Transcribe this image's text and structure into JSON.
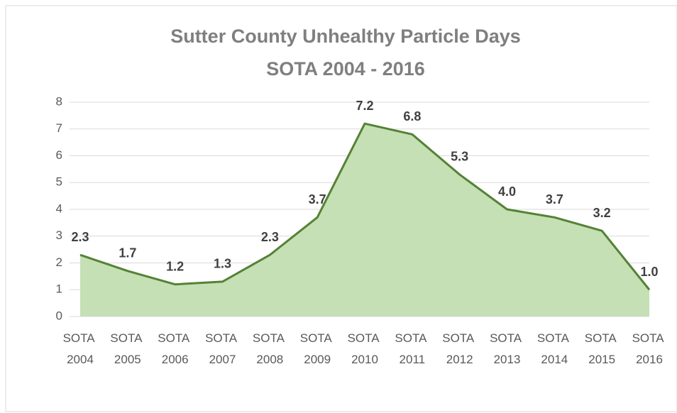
{
  "chart_data": {
    "type": "area",
    "title": "Sutter County Unhealthy Particle Days",
    "subtitle": "SOTA 2004 - 2016",
    "categories": [
      "SOTA 2004",
      "SOTA 2005",
      "SOTA 2006",
      "SOTA 2007",
      "SOTA 2008",
      "SOTA 2009",
      "SOTA 2010",
      "SOTA 2011",
      "SOTA 2012",
      "SOTA 2013",
      "SOTA 2014",
      "SOTA 2015",
      "SOTA 2016"
    ],
    "values": [
      2.3,
      1.7,
      1.2,
      1.3,
      2.3,
      3.7,
      7.2,
      6.8,
      5.3,
      4.0,
      3.7,
      3.2,
      1.0
    ],
    "value_labels": [
      "2.3",
      "1.7",
      "1.2",
      "1.3",
      "2.3",
      "3.7",
      "7.2",
      "6.8",
      "5.3",
      "4.0",
      "3.7",
      "3.2",
      "1.0"
    ],
    "color": "#548235",
    "fill": "#c5e0b4",
    "ylim": [
      0,
      8
    ],
    "yticks": [
      0,
      1,
      2,
      3,
      4,
      5,
      6,
      7,
      8
    ],
    "grid": true
  }
}
